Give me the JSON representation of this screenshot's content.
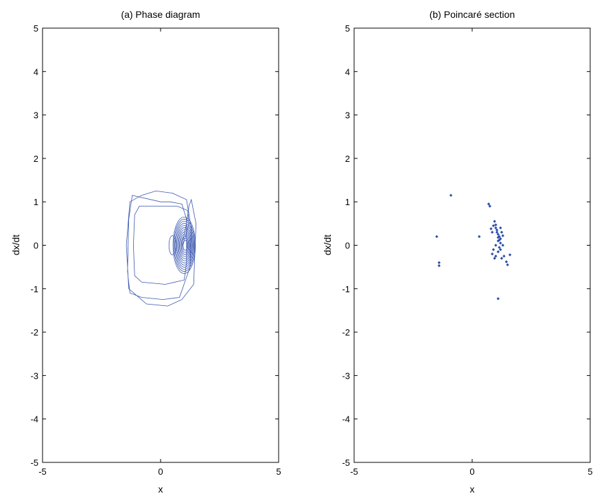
{
  "chart_data": [
    {
      "type": "line",
      "id": "phase",
      "title": "(a) Phase diagram",
      "xlabel": "x",
      "ylabel": "dx/dt",
      "xlim": [
        -5,
        5
      ],
      "ylim": [
        -5,
        5
      ],
      "xticks": [
        -5,
        0,
        5
      ],
      "yticks": [
        -5,
        -4,
        -3,
        -2,
        -1,
        0,
        1,
        2,
        3,
        4,
        5
      ],
      "grid": false,
      "color": "#3a56b0",
      "series": [
        {
          "x": [
            0.95,
            1.2,
            1.15,
            0.7,
            -0.9,
            -1.1,
            -1.15,
            -1.1,
            -0.8,
            0.2,
            1.0,
            1.1,
            1.1,
            1.1,
            0.9,
            0.4,
            0.0,
            -1.2,
            -1.35,
            -1.4,
            -1.3,
            -0.8,
            0.1,
            0.8,
            1.25,
            1.3,
            1.1,
            0.5,
            -0.2,
            -0.8,
            -1.3,
            -1.45,
            -1.35,
            -0.6,
            0.3,
            0.9,
            1.4,
            1.5,
            1.3,
            1.2,
            1.1,
            0.9
          ],
          "y": [
            0.0,
            0.5,
            0.8,
            0.9,
            0.9,
            0.7,
            0.0,
            -0.7,
            -0.85,
            -0.9,
            -0.8,
            -0.4,
            0.0,
            0.6,
            0.95,
            1.0,
            1.0,
            1.15,
            0.6,
            -0.6,
            -1.1,
            -1.2,
            -1.25,
            -1.2,
            -0.5,
            0.4,
            1.05,
            1.2,
            1.25,
            1.15,
            1.0,
            0.0,
            -1.0,
            -1.35,
            -1.4,
            -1.25,
            -0.9,
            0.5,
            1.05,
            0.9,
            0.5,
            0.0
          ]
        }
      ],
      "spiral_center": [
        1.0,
        0.0
      ],
      "spiral_turns": 12,
      "spiral_x_range": [
        0.45,
        1.4
      ],
      "spiral_y_range": [
        -0.55,
        0.75
      ],
      "inner_loop_center": [
        0.5,
        0.0
      ]
    },
    {
      "type": "scatter",
      "id": "poincare",
      "title": "(b) Poincaré section",
      "xlabel": "x",
      "ylabel": "dx/dt",
      "xlim": [
        -5,
        5
      ],
      "ylim": [
        -5,
        5
      ],
      "xticks": [
        -5,
        0,
        5
      ],
      "yticks": [
        -5,
        -4,
        -3,
        -2,
        -1,
        0,
        1,
        2,
        3,
        4,
        5
      ],
      "grid": false,
      "color": "#2e4fa8",
      "x": [
        -0.9,
        -1.5,
        -1.4,
        -1.4,
        0.3,
        0.7,
        0.75,
        0.8,
        0.9,
        0.95,
        1.0,
        1.0,
        1.05,
        1.1,
        1.1,
        1.15,
        1.2,
        1.2,
        1.25,
        1.0,
        0.9,
        0.85,
        1.1,
        1.15,
        1.2,
        1.25,
        1.3,
        1.35,
        1.45,
        1.5,
        1.6,
        1.1,
        1.05,
        1.15,
        1.2,
        1.1,
        0.95,
        1.0,
        0.85,
        1.3
      ],
      "y": [
        1.15,
        0.2,
        -0.4,
        -0.47,
        0.2,
        0.95,
        0.9,
        0.38,
        0.45,
        0.55,
        0.47,
        0.4,
        0.3,
        0.25,
        0.1,
        0.2,
        0.15,
        0.4,
        0.3,
        0.0,
        -0.1,
        -0.2,
        -0.15,
        -0.05,
        0.05,
        -0.3,
        0.22,
        -0.25,
        -0.38,
        -0.45,
        -0.22,
        -1.23,
        0.35,
        0.12,
        -0.1,
        0.18,
        -0.3,
        -0.25,
        0.3,
        0.0
      ]
    }
  ]
}
